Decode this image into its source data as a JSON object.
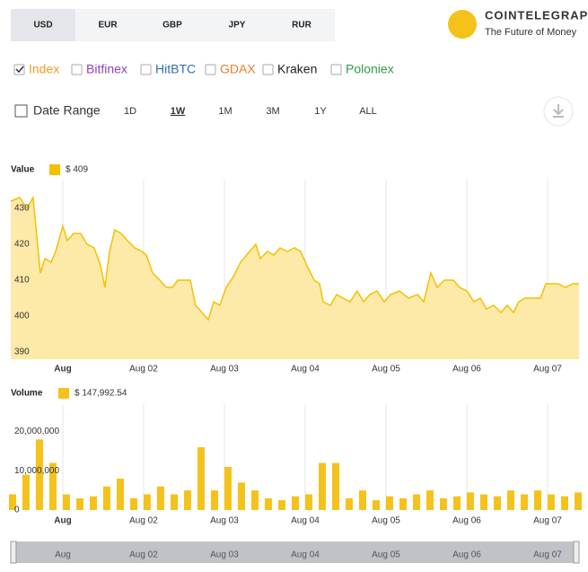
{
  "ui": {
    "currencies": [
      "USD",
      "EUR",
      "GBP",
      "JPY",
      "RUR"
    ],
    "logo": {
      "name": "COINTELEGRAPH",
      "tagline": "The Future of Money"
    },
    "exchanges": [
      {
        "name": "Index",
        "color": "#f29a1f",
        "checked": true
      },
      {
        "name": "Bitfinex",
        "color": "#8e3fc4",
        "checked": false
      },
      {
        "name": "HitBTC",
        "color": "#2f6fb5",
        "checked": false
      },
      {
        "name": "GDAX",
        "color": "#ee7d2b",
        "checked": false
      },
      {
        "name": "Kraken",
        "color": "#222222",
        "checked": false
      },
      {
        "name": "Poloniex",
        "color": "#2e9a4a",
        "checked": false
      }
    ],
    "date_range": {
      "label": "Date Range",
      "options": [
        "1D",
        "1W",
        "1M",
        "3M",
        "1Y",
        "ALL"
      ],
      "selected": 1
    }
  },
  "chart_data": [
    {
      "type": "area",
      "legend_label": "Value",
      "legend_value": "$ 409",
      "color": "#f5c000",
      "fill": "#fde9a8",
      "x": [
        -0.644,
        -0.533,
        -0.444,
        -0.367,
        -0.278,
        -0.222,
        -0.144,
        -0.089,
        0,
        0.056,
        0.133,
        0.222,
        0.3,
        0.389,
        0.467,
        0.522,
        0.578,
        0.644,
        0.722,
        0.8,
        0.889,
        0.978,
        1.033,
        1.111,
        1.2,
        1.278,
        1.356,
        1.422,
        1.5,
        1.578,
        1.644,
        1.722,
        1.8,
        1.867,
        1.944,
        2.022,
        2.111,
        2.2,
        2.311,
        2.389,
        2.444,
        2.533,
        2.611,
        2.689,
        2.778,
        2.867,
        2.944,
        3.022,
        3.111,
        3.178,
        3.222,
        3.311,
        3.389,
        3.467,
        3.556,
        3.644,
        3.722,
        3.8,
        3.889,
        3.978,
        4.056,
        4.167,
        4.278,
        4.389,
        4.467,
        4.556,
        4.633,
        4.722,
        4.833,
        4.911,
        5,
        5.089,
        5.167,
        5.244,
        5.333,
        5.422,
        5.5,
        5.578,
        5.644,
        5.722,
        5.833,
        5.911,
        5.978,
        6.056,
        6.133,
        6.222,
        6.311,
        6.389
      ],
      "values": [
        432,
        433,
        430,
        433,
        412,
        416,
        415,
        418,
        425,
        421,
        423,
        423,
        420,
        419,
        414,
        408,
        418,
        424,
        423,
        421,
        419,
        418,
        417,
        412,
        410,
        408,
        408,
        410,
        410,
        410,
        403,
        401,
        399,
        404,
        403,
        408,
        411,
        415,
        418,
        420,
        416,
        418,
        417,
        419,
        418,
        419,
        418,
        414,
        410,
        409,
        404,
        403,
        406,
        405,
        404,
        407,
        404,
        406,
        407,
        404,
        406,
        407,
        405,
        406,
        404,
        412,
        408,
        410,
        410,
        408,
        407,
        404,
        405,
        402,
        403,
        401,
        403,
        401,
        404,
        405,
        405,
        405,
        409,
        409,
        409,
        408,
        409,
        409
      ],
      "xlim": [
        -0.644,
        6.389
      ],
      "xticks": [
        {
          "value": 0,
          "label": "Aug"
        },
        {
          "value": 1,
          "label": "Aug 02"
        },
        {
          "value": 2,
          "label": "Aug 03"
        },
        {
          "value": 3,
          "label": "Aug 04"
        },
        {
          "value": 4,
          "label": "Aug 05"
        },
        {
          "value": 5,
          "label": "Aug 06"
        },
        {
          "value": 6,
          "label": "Aug 07"
        }
      ],
      "ylim": [
        388,
        438
      ],
      "yticks": [
        390,
        400,
        410,
        420,
        430
      ],
      "grid": true
    },
    {
      "type": "bar",
      "legend_label": "Volume",
      "legend_value": "$ 147,992.54",
      "color": "#f5c21b",
      "x": [
        -0.622,
        -0.456,
        -0.289,
        -0.122,
        0.044,
        0.211,
        0.378,
        0.544,
        0.711,
        0.878,
        1.044,
        1.211,
        1.378,
        1.544,
        1.711,
        1.878,
        2.044,
        2.211,
        2.378,
        2.544,
        2.711,
        2.878,
        3.044,
        3.211,
        3.378,
        3.544,
        3.711,
        3.878,
        4.044,
        4.211,
        4.378,
        4.544,
        4.711,
        4.878,
        5.044,
        5.211,
        5.378,
        5.544,
        5.711,
        5.878,
        6.044,
        6.211,
        6.378
      ],
      "values": [
        4000000,
        9000000,
        18000000,
        12000000,
        4000000,
        3000000,
        3500000,
        6000000,
        8000000,
        3000000,
        4000000,
        6000000,
        4000000,
        5000000,
        16000000,
        5000000,
        11000000,
        7000000,
        5000000,
        3000000,
        2500000,
        3500000,
        4000000,
        12000000,
        12000000,
        3000000,
        5000000,
        2500000,
        3500000,
        3000000,
        4000000,
        5000000,
        3000000,
        3500000,
        4500000,
        4000000,
        3500000,
        5000000,
        4000000,
        5000000,
        4000000,
        3500000,
        4500000
      ],
      "xlim": [
        -0.644,
        6.389
      ],
      "xticks": [
        {
          "value": 0,
          "label": "Aug"
        },
        {
          "value": 1,
          "label": "Aug 02"
        },
        {
          "value": 2,
          "label": "Aug 03"
        },
        {
          "value": 3,
          "label": "Aug 04"
        },
        {
          "value": 4,
          "label": "Aug 05"
        },
        {
          "value": 5,
          "label": "Aug 06"
        },
        {
          "value": 6,
          "label": "Aug 07"
        }
      ],
      "ylim": [
        0,
        27000000
      ],
      "yticks": [
        0,
        {
          "value": 10000000,
          "label": "10,000,000"
        },
        {
          "value": 20000000,
          "label": "20,000,000"
        }
      ],
      "grid": true
    }
  ]
}
